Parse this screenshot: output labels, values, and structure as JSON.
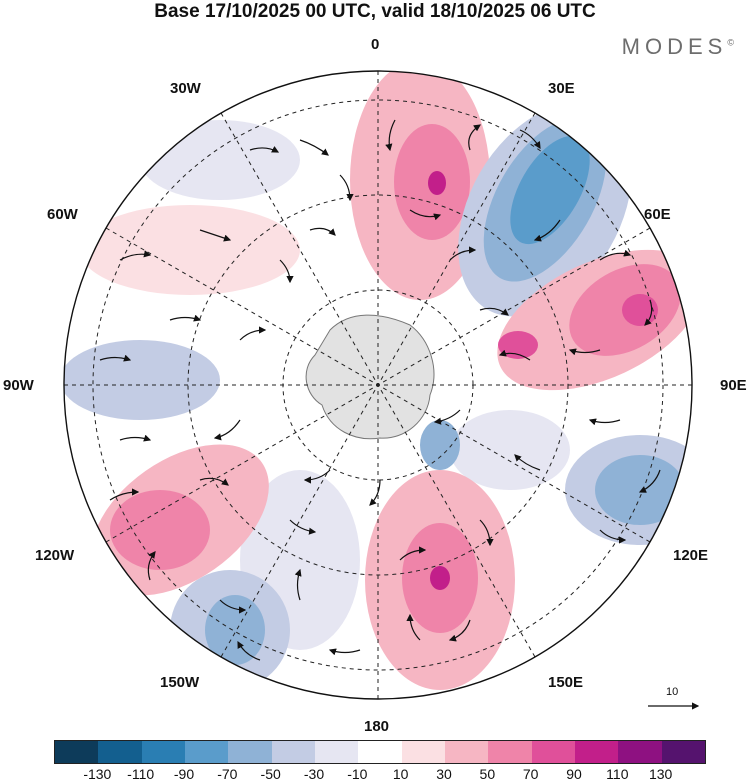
{
  "title": "Base 17/10/2025 00 UTC, valid 18/10/2025 06 UTC",
  "brand": "MODES",
  "brand_mark": "©",
  "longitude_labels": {
    "top": "0",
    "top_right": "30E",
    "right_upper": "60E",
    "right": "90E",
    "right_lower": "120E",
    "bottom_right": "150E",
    "bottom": "180",
    "bottom_left": "150W",
    "left_lower": "120W",
    "left": "90W",
    "left_upper": "60W",
    "top_left": "30W"
  },
  "vector_reference": "10",
  "colorbar": {
    "colors": [
      "#0d3b5a",
      "#135f8f",
      "#2a7eb3",
      "#5a9ccb",
      "#8fb2d6",
      "#c3cce4",
      "#e6e6f2",
      "#ffffff",
      "#fbe0e3",
      "#f6b6c3",
      "#ef84a9",
      "#e0509a",
      "#c21f8a",
      "#8e1181",
      "#55136e"
    ],
    "ticks": [
      "-130",
      "-110",
      "-90",
      "-70",
      "-50",
      "-30",
      "-10",
      "10",
      "30",
      "50",
      "70",
      "90",
      "110",
      "130"
    ]
  }
}
